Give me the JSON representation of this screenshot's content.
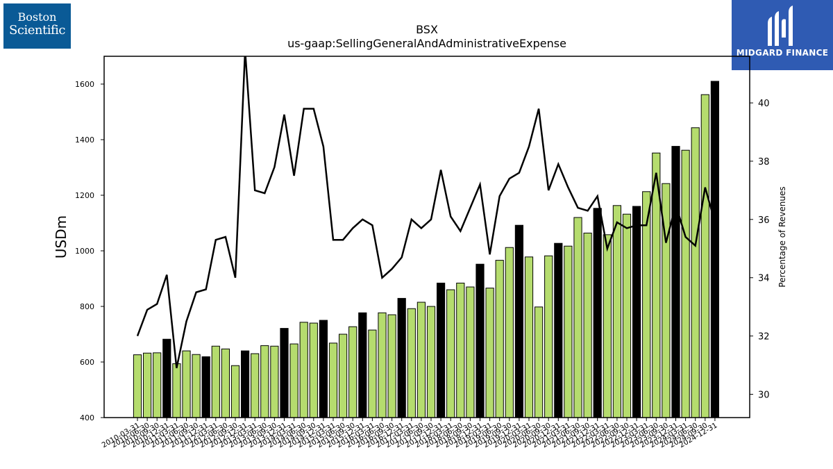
{
  "logos": {
    "left_line1": "Boston",
    "left_line2": "Scientific",
    "right_text": "MIDGARD FINANCE"
  },
  "colors": {
    "bar_green": "#b5dc6e",
    "bar_black": "#000000",
    "line": "#000000",
    "left_logo_bg": "#0a5a96",
    "right_logo_bg": "#2f5bb3"
  },
  "chart_data": {
    "type": "bar",
    "title": "BSX",
    "subtitle": "us-gaap:SellingGeneralAndAdministrativeExpense",
    "ylabel": "USDm",
    "y2label": "Percentage of Revenues",
    "ylim": [
      400,
      1700
    ],
    "y2lim": [
      29.2,
      41.6
    ],
    "yticks": [
      400,
      600,
      800,
      1000,
      1200,
      1400,
      1600
    ],
    "y2ticks": [
      30,
      32,
      34,
      36,
      38,
      40
    ],
    "grid": false,
    "legend": "none",
    "categories": [
      "2010-03-31",
      "2010-06-30",
      "2010-09-30",
      "2010-12-31",
      "2011-03-31",
      "2011-06-30",
      "2011-09-30",
      "2011-12-31",
      "2012-03-31",
      "2012-06-30",
      "2012-09-30",
      "2012-12-31",
      "2013-03-31",
      "2013-06-30",
      "2013-09-30",
      "2013-12-31",
      "2014-03-31",
      "2014-06-30",
      "2014-09-30",
      "2014-12-31",
      "2015-03-31",
      "2015-06-30",
      "2015-09-30",
      "2015-12-31",
      "2016-03-31",
      "2016-06-30",
      "2016-09-30",
      "2016-12-31",
      "2017-03-31",
      "2017-06-30",
      "2017-09-30",
      "2017-12-31",
      "2018-03-31",
      "2018-06-30",
      "2018-09-30",
      "2018-12-31",
      "2019-03-31",
      "2019-06-30",
      "2019-09-30",
      "2019-12-31",
      "2020-03-31",
      "2020-06-30",
      "2020-09-30",
      "2020-12-31",
      "2021-03-31",
      "2021-06-30",
      "2021-09-30",
      "2021-12-31",
      "2022-03-31",
      "2022-06-30",
      "2022-09-30",
      "2022-12-31",
      "2023-03-31",
      "2023-06-30",
      "2023-09-30",
      "2023-12-31",
      "2024-03-31",
      "2024-06-30",
      "2024-09-30",
      "2024-12-31"
    ],
    "series": [
      {
        "kind": "bar",
        "axis": "left",
        "values": [
          626,
          632,
          633,
          682,
          594,
          640,
          627,
          619,
          657,
          647,
          587,
          640,
          630,
          659,
          657,
          721,
          665,
          743,
          740,
          750,
          668,
          700,
          727,
          777,
          715,
          777,
          770,
          829,
          792,
          815,
          800,
          884,
          860,
          884,
          870,
          952,
          866,
          966,
          1012,
          1092,
          978,
          798,
          982,
          1027,
          1017,
          1120,
          1064,
          1153,
          1058,
          1163,
          1132,
          1160,
          1213,
          1352,
          1242,
          1376,
          1362,
          1443,
          1562,
          1610
        ],
        "year_end": [
          false,
          false,
          false,
          true,
          false,
          false,
          false,
          true,
          false,
          false,
          false,
          true,
          false,
          false,
          false,
          true,
          false,
          false,
          false,
          true,
          false,
          false,
          false,
          true,
          false,
          false,
          false,
          true,
          false,
          false,
          false,
          true,
          false,
          false,
          false,
          true,
          false,
          false,
          false,
          true,
          false,
          false,
          false,
          true,
          false,
          false,
          false,
          true,
          false,
          false,
          false,
          true,
          false,
          false,
          false,
          true,
          false,
          false,
          false,
          true
        ]
      },
      {
        "kind": "line",
        "axis": "right",
        "values": [
          32.0,
          32.9,
          33.1,
          34.1,
          30.9,
          32.5,
          33.5,
          33.6,
          35.3,
          35.4,
          34.0,
          41.8,
          37.0,
          36.9,
          37.8,
          39.6,
          37.5,
          39.8,
          39.8,
          38.5,
          35.3,
          35.3,
          35.7,
          36.0,
          35.8,
          34.0,
          34.3,
          34.7,
          36.0,
          35.7,
          36.0,
          37.7,
          36.1,
          35.6,
          36.4,
          37.2,
          34.8,
          36.8,
          37.4,
          37.6,
          38.5,
          39.8,
          37.0,
          37.9,
          37.1,
          36.4,
          36.3,
          36.8,
          35.0,
          35.9,
          35.7,
          35.8,
          35.8,
          37.6,
          35.2,
          36.5,
          35.4,
          35.1,
          37.1,
          35.9
        ]
      }
    ]
  }
}
